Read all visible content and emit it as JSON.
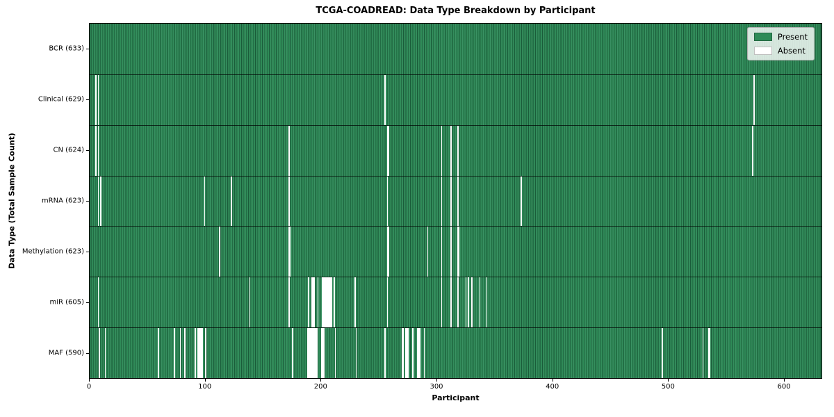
{
  "chart_data": {
    "type": "heatmap",
    "title": "TCGA-COADREAD: Data Type Breakdown by Participant",
    "xlabel": "Participant",
    "ylabel": "Data Type (Total Sample Count)",
    "xlim": [
      0,
      633
    ],
    "x_ticks": [
      0,
      100,
      200,
      300,
      400,
      500,
      600
    ],
    "n_participants": 633,
    "grid": false,
    "colors": {
      "present": "#2e8b57",
      "absent": "#ffffff"
    },
    "legend": {
      "position": "upper right",
      "entries": [
        {
          "label": "Present",
          "color": "#2e8b57"
        },
        {
          "label": "Absent",
          "color": "#ffffff"
        }
      ]
    },
    "rows": [
      {
        "name": "bcr",
        "label": "BCR (633)",
        "present_count": 633,
        "absent_participants": []
      },
      {
        "name": "clinical",
        "label": "Clinical (629)",
        "present_count": 629,
        "absent_participants": [
          5,
          7,
          255,
          574
        ]
      },
      {
        "name": "cn",
        "label": "CN (624)",
        "present_count": 624,
        "absent_participants": [
          5,
          7,
          172,
          257,
          258,
          304,
          312,
          318,
          573
        ]
      },
      {
        "name": "mrna",
        "label": "mRNA (623)",
        "present_count": 623,
        "absent_participants": [
          7,
          9,
          99,
          122,
          172,
          257,
          304,
          312,
          318,
          373
        ]
      },
      {
        "name": "methylation",
        "label": "Methylation (623)",
        "present_count": 623,
        "absent_participants": [
          112,
          172,
          173,
          257,
          258,
          292,
          304,
          312,
          318,
          319
        ]
      },
      {
        "name": "mir",
        "label": "miR (605)",
        "present_count": 605,
        "absent_participants": [
          7,
          138,
          172,
          189,
          192,
          193,
          194,
          197,
          201,
          202,
          203,
          204,
          205,
          206,
          207,
          208,
          209,
          211,
          229,
          257,
          304,
          312,
          318,
          325,
          327,
          330,
          337,
          343
        ]
      },
      {
        "name": "maf",
        "label": "MAF (590)",
        "present_count": 590,
        "absent_participants": [
          8,
          13,
          59,
          73,
          78,
          82,
          91,
          93,
          94,
          95,
          96,
          97,
          100,
          175,
          188,
          189,
          190,
          191,
          192,
          193,
          194,
          195,
          196,
          200,
          201,
          202,
          212,
          230,
          255,
          270,
          271,
          273,
          274,
          275,
          279,
          283,
          284,
          285,
          289,
          495,
          530,
          535,
          536
        ]
      }
    ]
  }
}
